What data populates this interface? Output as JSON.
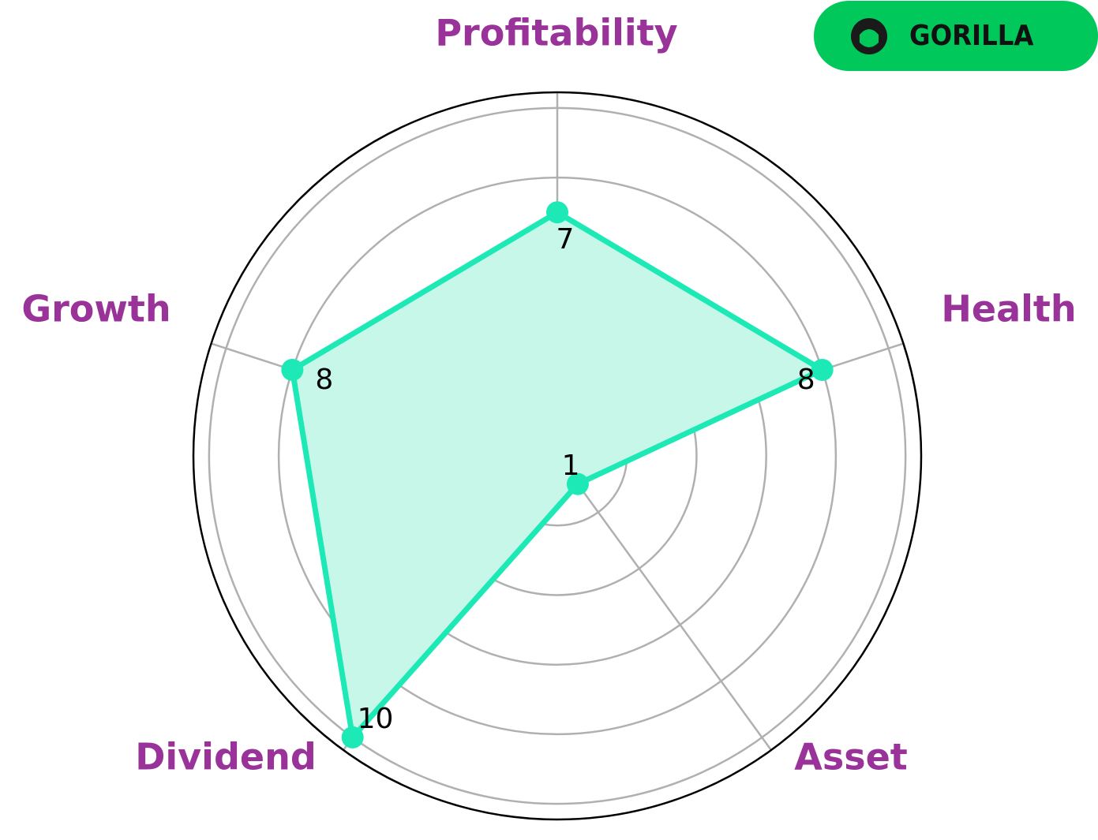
{
  "chart_data": {
    "type": "radar",
    "categories": [
      "Profitability",
      "Health",
      "Asset",
      "Dividend",
      "Growth"
    ],
    "values": [
      7,
      8,
      1,
      10,
      8
    ],
    "color": "#1de9b6",
    "fill": "#c6f7e9",
    "ylim": [
      0,
      10.45
    ],
    "yticks": [
      2,
      4,
      6,
      8,
      10
    ],
    "grid": true
  },
  "logo": {
    "text": "GORILLA"
  }
}
